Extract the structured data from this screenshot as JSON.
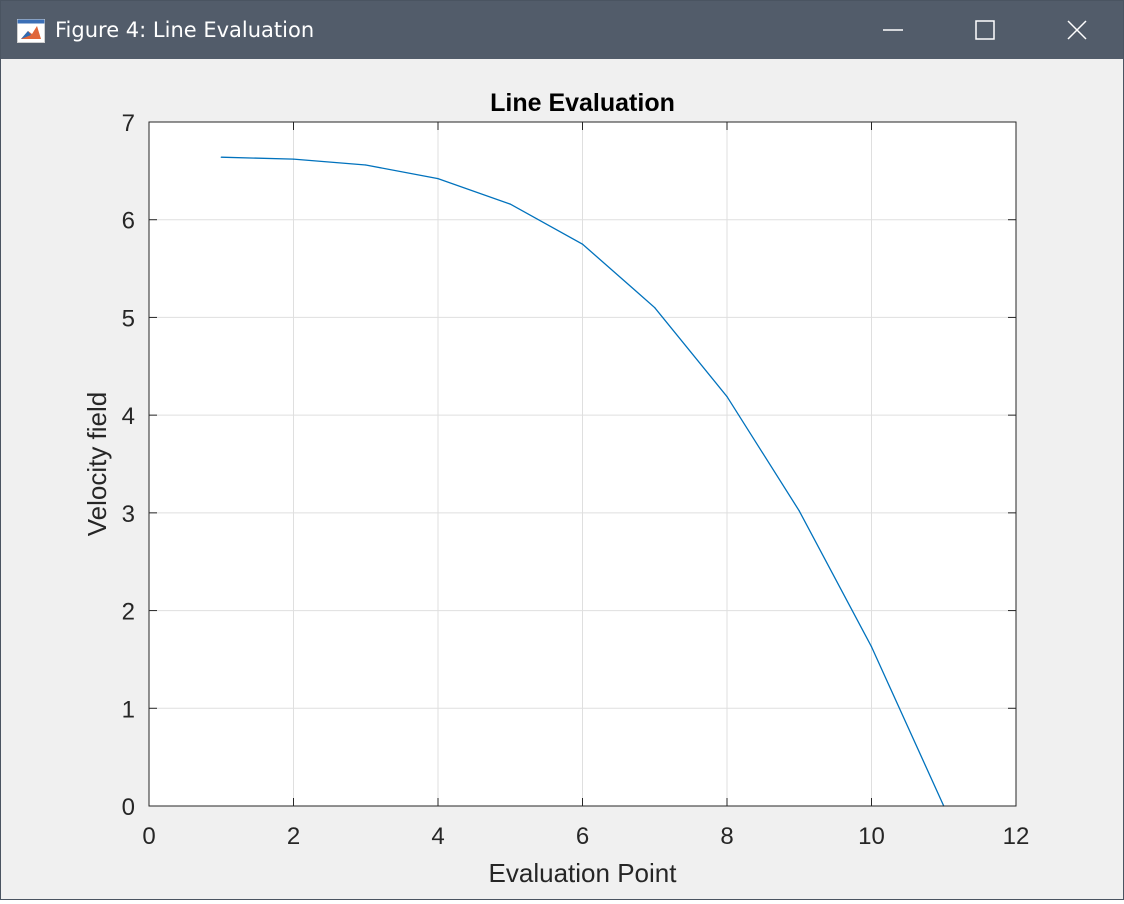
{
  "window": {
    "title": "Figure 4: Line Evaluation",
    "icon": "matlab-figure-icon",
    "controls": {
      "minimize_icon": "minimize-icon",
      "maximize_icon": "maximize-icon",
      "close_icon": "close-icon"
    },
    "titlebar_color": "#525c6a"
  },
  "chart_data": {
    "type": "line",
    "title": "Line Evaluation",
    "xlabel": "Evaluation Point",
    "ylabel": "Velocity field",
    "xlim": [
      0,
      12
    ],
    "ylim": [
      0,
      7
    ],
    "xticks": [
      0,
      2,
      4,
      6,
      8,
      10,
      12
    ],
    "yticks": [
      0,
      1,
      2,
      3,
      4,
      5,
      6,
      7
    ],
    "grid": true,
    "box": true,
    "series": [
      {
        "color": "#0072bd",
        "x": [
          1,
          2,
          3,
          4,
          5,
          6,
          7,
          8,
          9,
          10,
          11
        ],
        "y": [
          6.64,
          6.62,
          6.56,
          6.42,
          6.16,
          5.75,
          5.1,
          4.19,
          3.02,
          1.63,
          0.0
        ]
      }
    ]
  }
}
